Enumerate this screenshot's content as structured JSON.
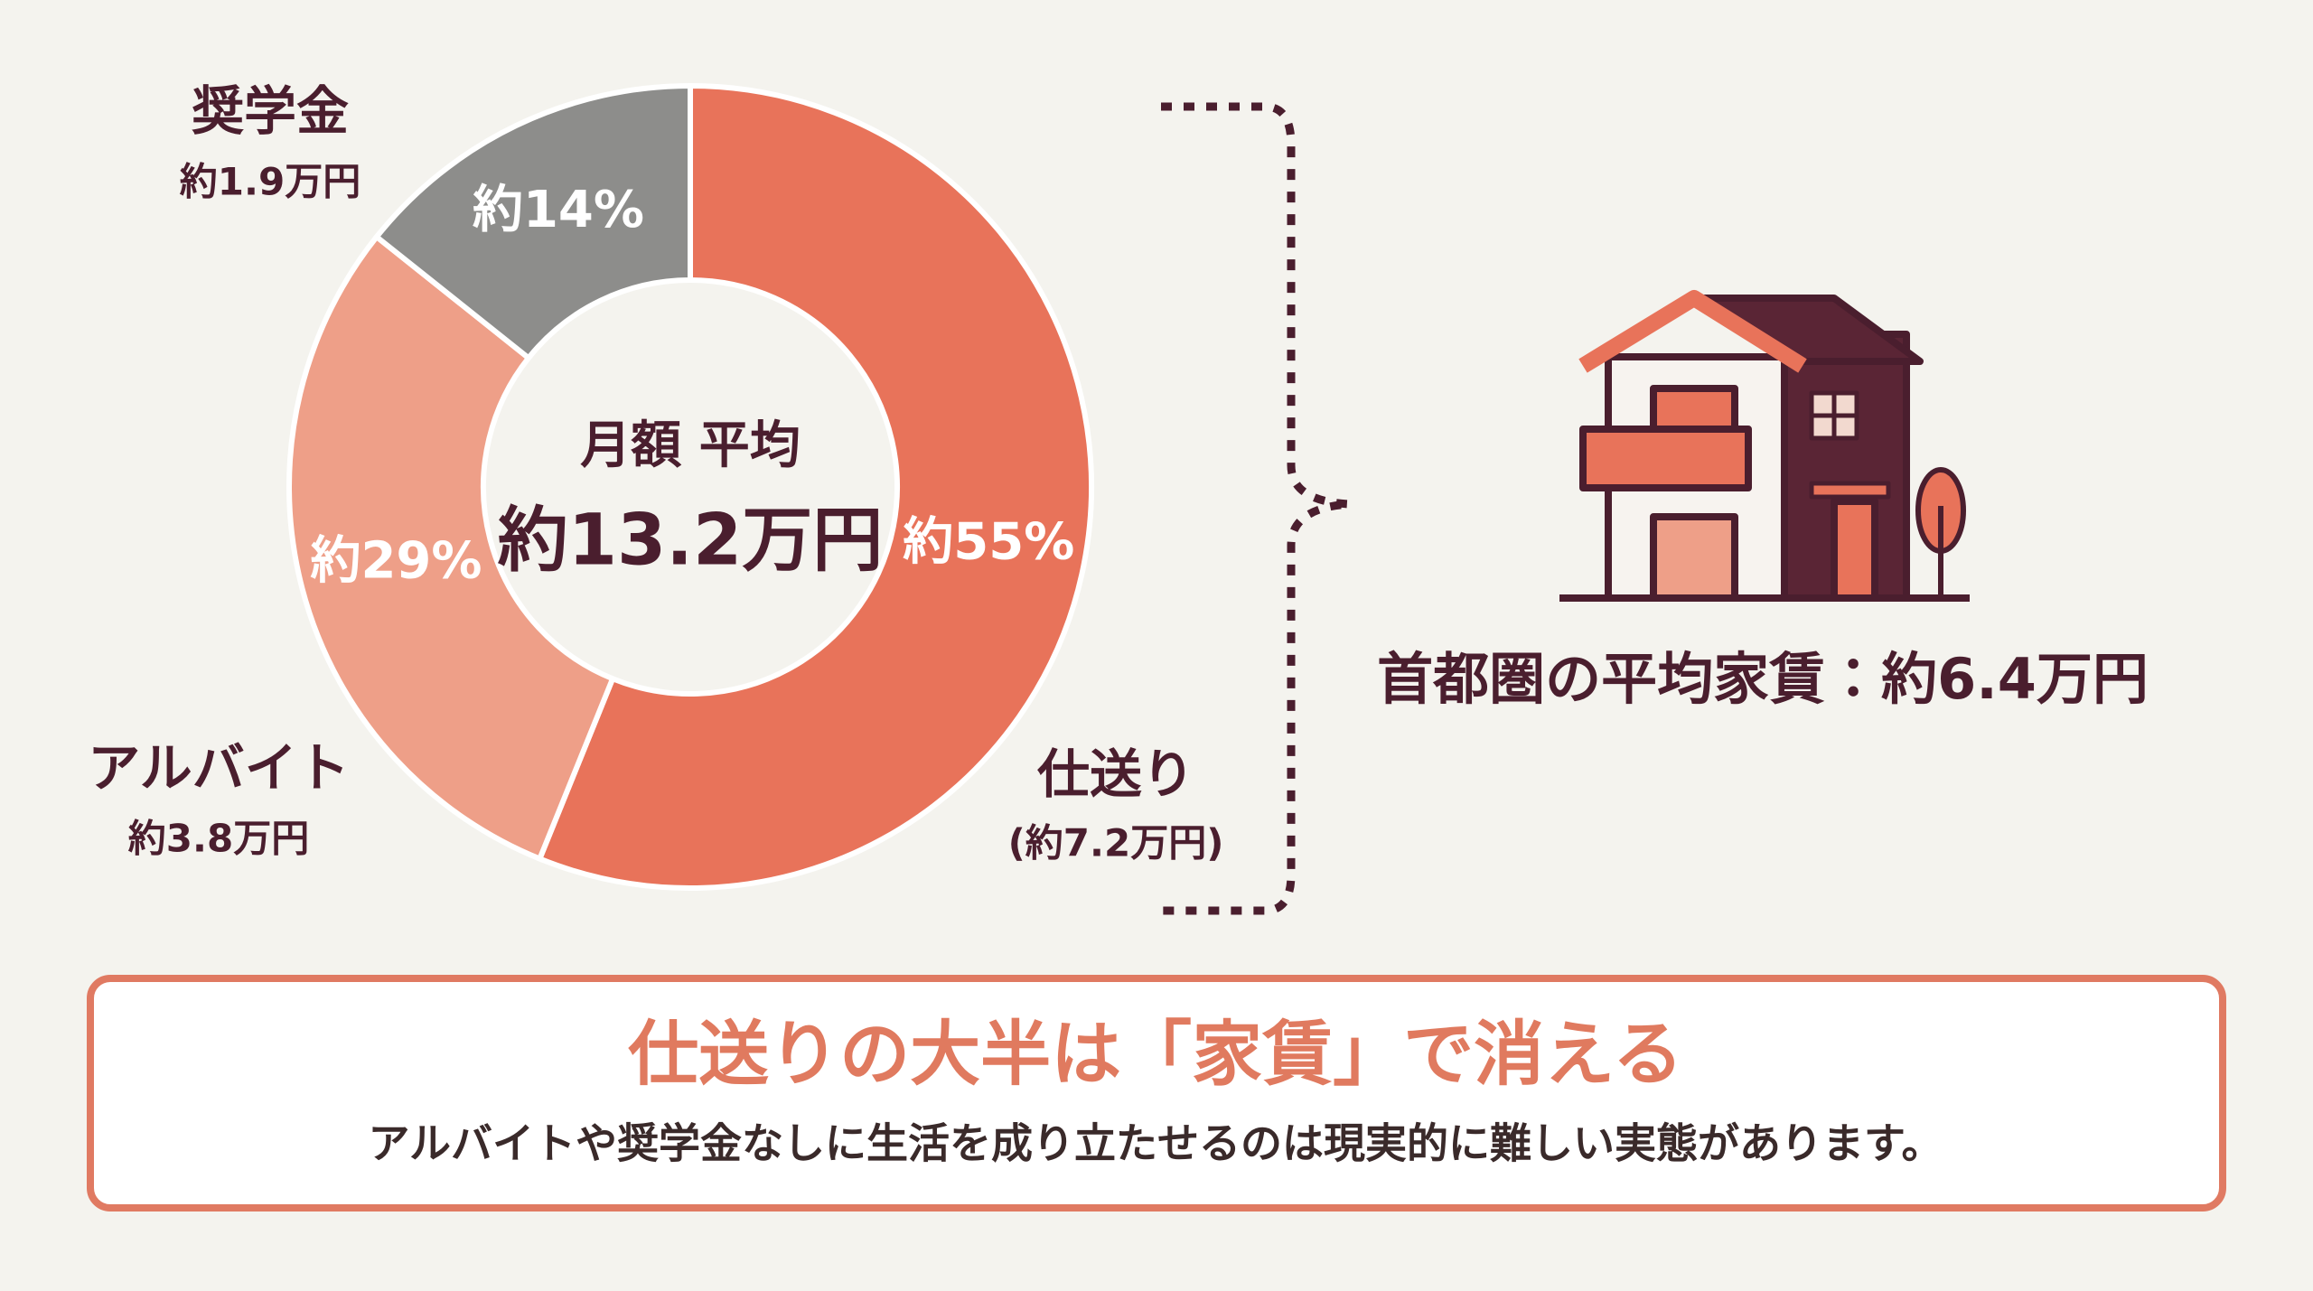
{
  "chart_data": {
    "type": "pie",
    "categories": [
      "仕送り",
      "アルバイト",
      "奨学金"
    ],
    "category_amounts": [
      "(約7.2万円)",
      "約3.8万円",
      "約1.9万円"
    ],
    "values": [
      55,
      29,
      14
    ],
    "value_labels": [
      "約55%",
      "約29%",
      "約14%"
    ],
    "colors": [
      "#e8735a",
      "#ee9f88",
      "#8d8d8b"
    ],
    "center_title": "月額 平均",
    "center_value": "約13.2万円"
  },
  "rent_note": "首都圏の平均家賃：約6.4万円",
  "callout": {
    "title": "仕送りの大半は「家賃」で消える",
    "text": "アルバイトや奨学金なしに生活を成り立たせるのは現実的に難しい実態があります。"
  }
}
